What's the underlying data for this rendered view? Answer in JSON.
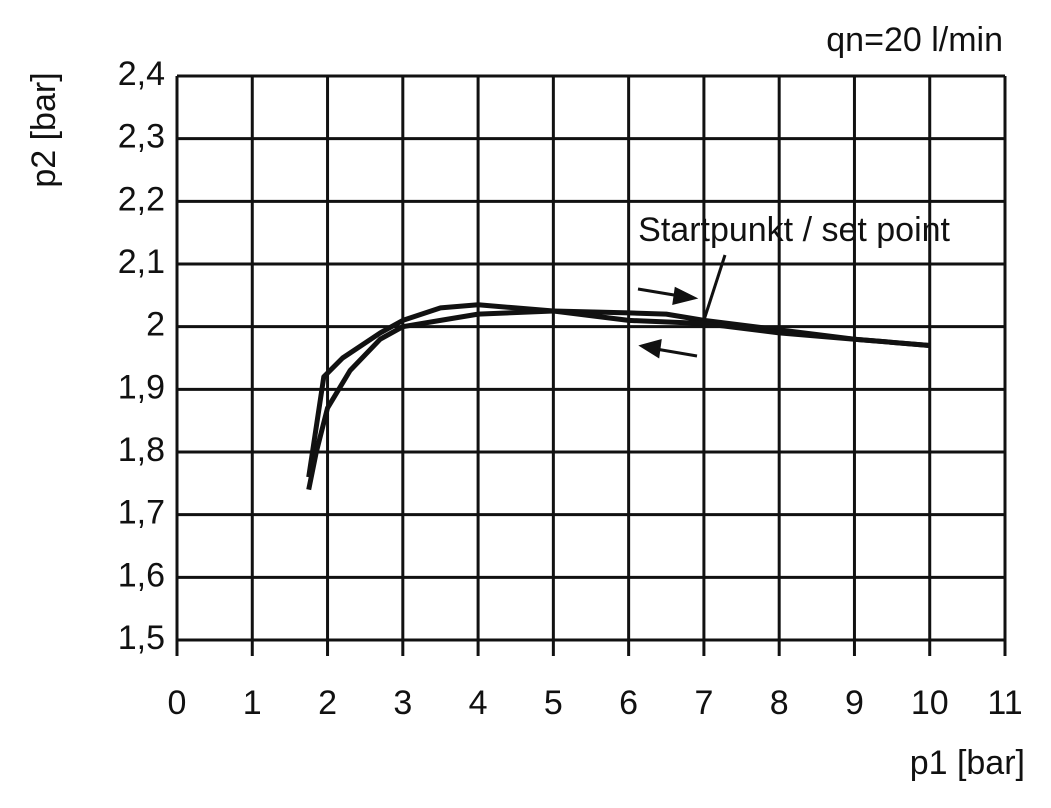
{
  "chart_data": {
    "type": "line",
    "annotations": [
      "qn=20 l/min",
      "Startpunkt / set point"
    ],
    "xlabel": "p1 [bar]",
    "ylabel": "p2 [bar]",
    "xlim": [
      0,
      11
    ],
    "xticks": [
      0,
      1,
      2,
      3,
      4,
      5,
      6,
      7,
      8,
      9,
      10,
      11
    ],
    "ylim": [
      1.5,
      2.4
    ],
    "yticks": [
      {
        "value": 1.5,
        "label": "1,5"
      },
      {
        "value": 1.6,
        "label": "1,6"
      },
      {
        "value": 1.7,
        "label": "1,7"
      },
      {
        "value": 1.8,
        "label": "1,8"
      },
      {
        "value": 1.9,
        "label": "1,9"
      },
      2,
      {
        "value": 2.1,
        "label": "2,1"
      },
      {
        "value": 2.2,
        "label": "2,2"
      },
      {
        "value": 2.3,
        "label": "2,3"
      },
      {
        "value": 2.4,
        "label": "2,4"
      }
    ],
    "grid": true,
    "series": [
      {
        "color": "#111111",
        "x": [
          1.75,
          1.8,
          1.95,
          2.2,
          2.7,
          3.0,
          3.5,
          4.0,
          4.5,
          5.0,
          6.0,
          6.5,
          7.0,
          8.0,
          9.0,
          10.0
        ],
        "values": [
          1.76,
          1.8,
          1.92,
          1.95,
          1.99,
          2.01,
          2.03,
          2.035,
          2.03,
          2.025,
          2.022,
          2.02,
          2.01,
          1.995,
          1.98,
          1.97
        ]
      },
      {
        "color": "#111111",
        "x": [
          1.75,
          1.85,
          2.0,
          2.3,
          2.7,
          3.0,
          3.5,
          4.0,
          5.0,
          6.0,
          7.0,
          8.0,
          9.0,
          10.0
        ],
        "values": [
          1.74,
          1.8,
          1.87,
          1.93,
          1.98,
          2.0,
          2.01,
          2.02,
          2.025,
          2.01,
          2.005,
          1.99,
          1.98,
          1.97
        ]
      }
    ]
  }
}
